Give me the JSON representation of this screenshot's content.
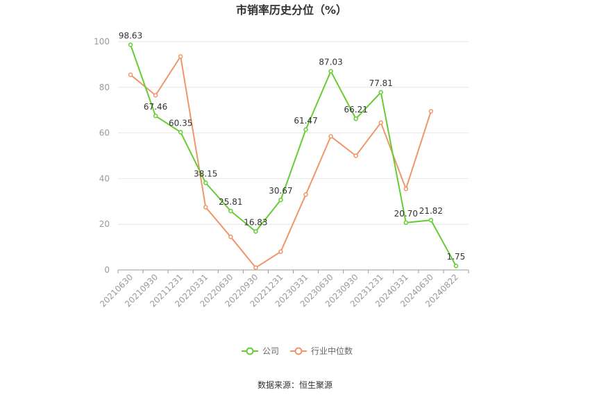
{
  "chart_data": {
    "type": "line",
    "title": "市销率历史分位（%）",
    "categories": [
      "20210630",
      "20210930",
      "20211231",
      "20220331",
      "20220630",
      "20220930",
      "20221231",
      "20230331",
      "20230630",
      "20230930",
      "20231231",
      "20240331",
      "20240630",
      "20240822"
    ],
    "ylim": [
      0,
      100
    ],
    "yticks": [
      "0",
      "20",
      "40",
      "60",
      "80",
      "100"
    ],
    "grid": true,
    "legend_position": "bottom",
    "series": [
      {
        "name": "公司",
        "color": "#66cc33",
        "values": [
          98.63,
          67.46,
          60.35,
          38.15,
          25.81,
          16.83,
          30.67,
          61.47,
          87.03,
          66.21,
          77.81,
          20.7,
          21.82,
          1.75
        ],
        "labels": [
          "98.63",
          "67.46",
          "60.35",
          "38.15",
          "25.81",
          "16.83",
          "30.67",
          "61.47",
          "87.03",
          "66.21",
          "77.81",
          "20.70",
          "21.82",
          "1.75"
        ]
      },
      {
        "name": "行业中位数",
        "color": "#f0956a",
        "values": [
          85.5,
          76.5,
          93.5,
          27.5,
          14.5,
          1.0,
          8.0,
          33.0,
          58.5,
          50.0,
          64.5,
          35.5,
          69.5,
          null
        ]
      }
    ]
  },
  "footer": {
    "source": "数据来源：恒生聚源"
  }
}
